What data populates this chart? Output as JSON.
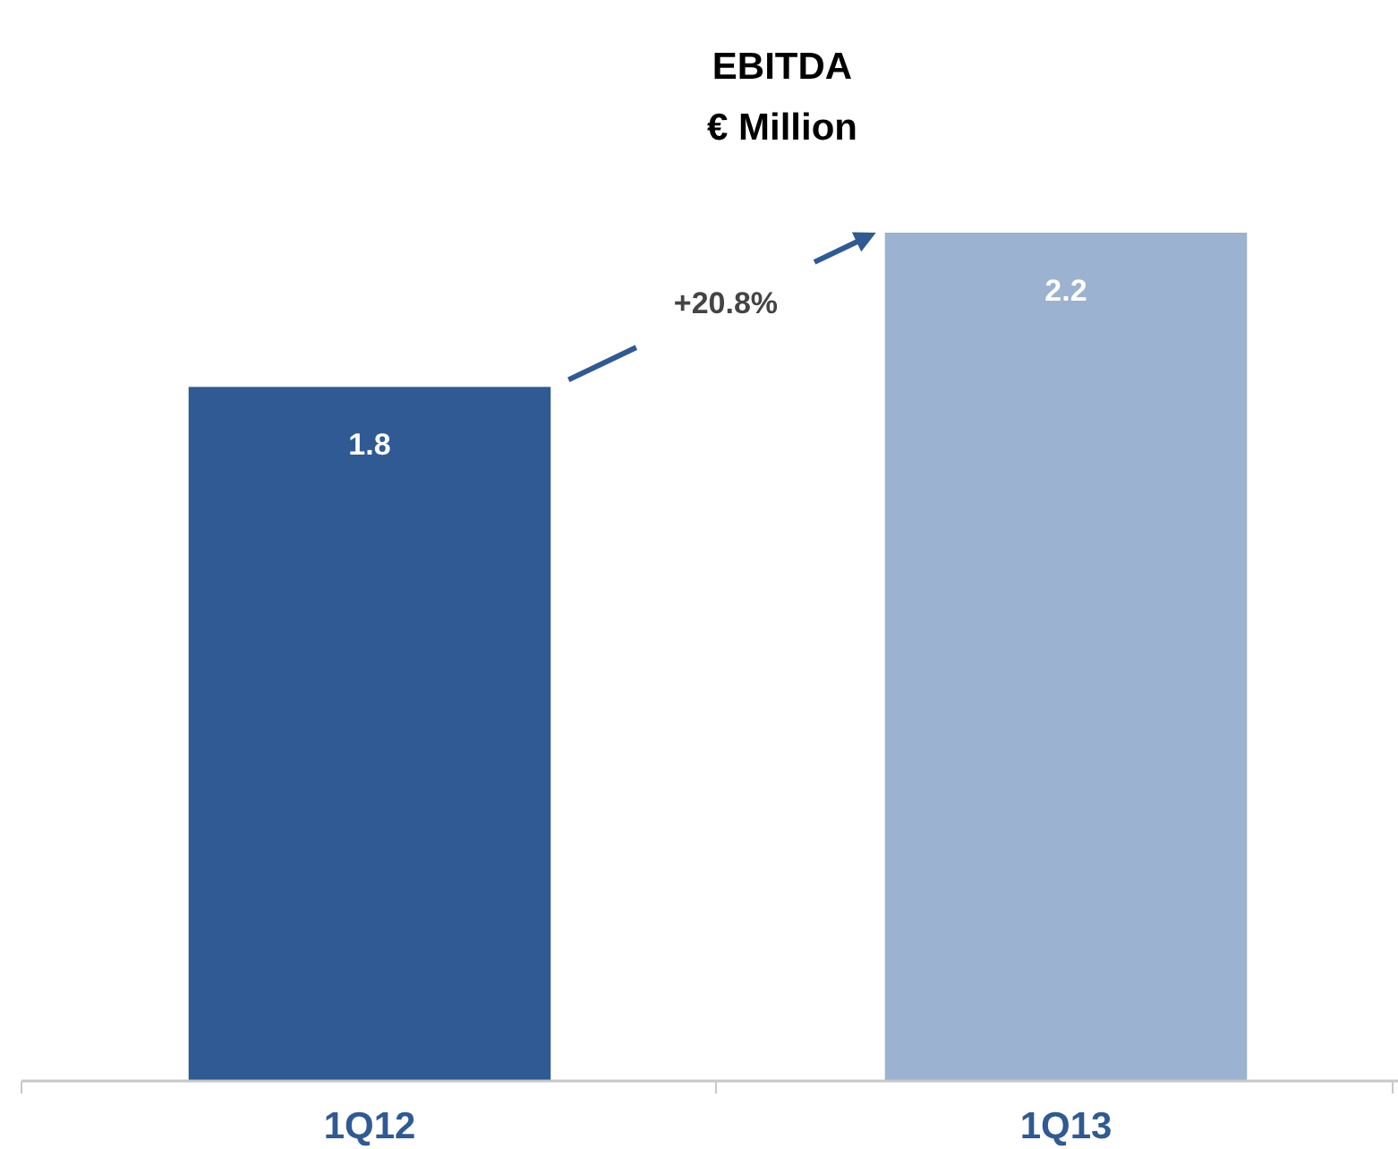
{
  "chart_data": {
    "type": "bar",
    "title": "EBITDA",
    "subtitle": "€ Million",
    "categories": [
      "1Q12",
      "1Q13"
    ],
    "values": [
      1.8,
      2.2
    ],
    "colors": [
      "#2f5a93",
      "#9bb2d0"
    ],
    "ylim": [
      0,
      2.2
    ],
    "data_labels": true,
    "annotations": [
      "+20.8%"
    ]
  }
}
